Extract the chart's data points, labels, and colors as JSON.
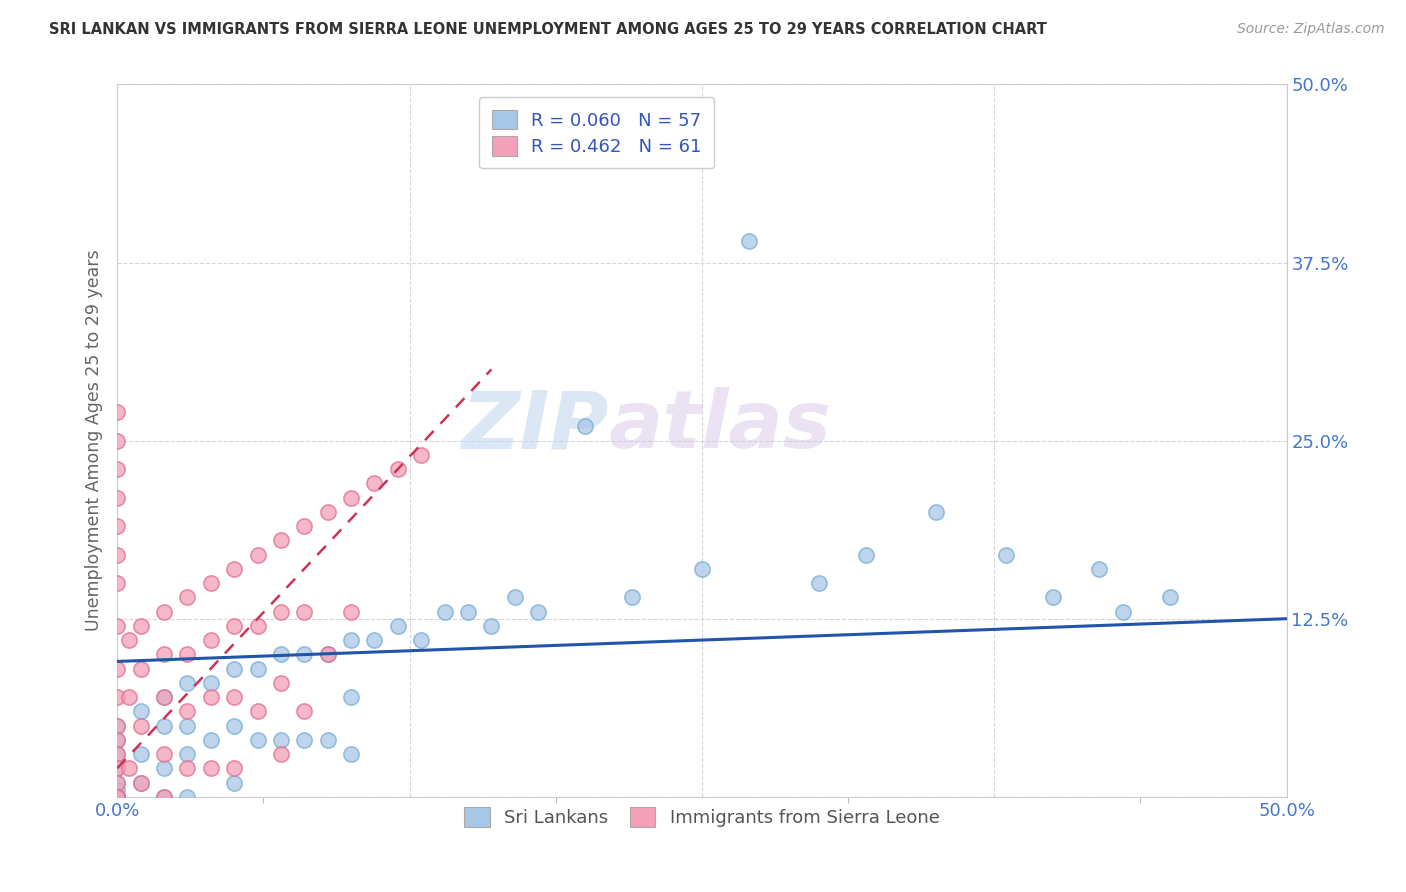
{
  "title": "SRI LANKAN VS IMMIGRANTS FROM SIERRA LEONE UNEMPLOYMENT AMONG AGES 25 TO 29 YEARS CORRELATION CHART",
  "source": "Source: ZipAtlas.com",
  "ylabel": "Unemployment Among Ages 25 to 29 years",
  "xlim": [
    0.0,
    0.5
  ],
  "ylim": [
    0.0,
    0.5
  ],
  "xtick_positions": [
    0.0,
    0.125,
    0.25,
    0.375,
    0.5
  ],
  "xticklabels": [
    "0.0%",
    "",
    "",
    "",
    "50.0%"
  ],
  "ytick_positions": [
    0.0,
    0.125,
    0.25,
    0.375,
    0.5
  ],
  "yticklabels": [
    "",
    "12.5%",
    "25.0%",
    "37.5%",
    "50.0%"
  ],
  "sri_lankan_color": "#a8c8e8",
  "sri_lankan_edge": "#7aafd4",
  "sierra_leone_color": "#f4a0b8",
  "sierra_leone_edge": "#e07090",
  "sri_lankan_R": 0.06,
  "sri_lankan_N": 57,
  "sierra_leone_R": 0.462,
  "sierra_leone_N": 61,
  "sri_lankan_line_color": "#2255aa",
  "sierra_leone_line_color": "#cc3355",
  "watermark_zip": "ZIP",
  "watermark_atlas": "atlas",
  "legend_label_1": "Sri Lankans",
  "legend_label_2": "Immigrants from Sierra Leone",
  "tick_color": "#4477cc",
  "grid_color": "#cccccc",
  "sl_x": [
    0.0,
    0.0,
    0.0,
    0.0,
    0.0,
    0.0,
    0.0,
    0.0,
    0.0,
    0.0,
    0.01,
    0.01,
    0.01,
    0.02,
    0.02,
    0.02,
    0.02,
    0.03,
    0.03,
    0.03,
    0.03,
    0.04,
    0.04,
    0.05,
    0.05,
    0.05,
    0.06,
    0.06,
    0.07,
    0.07,
    0.08,
    0.08,
    0.09,
    0.09,
    0.1,
    0.1,
    0.1,
    0.11,
    0.12,
    0.13,
    0.14,
    0.15,
    0.16,
    0.17,
    0.18,
    0.2,
    0.22,
    0.25,
    0.27,
    0.3,
    0.32,
    0.35,
    0.38,
    0.4,
    0.42,
    0.43,
    0.45
  ],
  "sl_y": [
    0.05,
    0.04,
    0.03,
    0.02,
    0.01,
    0.005,
    0.0,
    0.0,
    0.0,
    0.0,
    0.06,
    0.03,
    0.01,
    0.07,
    0.05,
    0.02,
    0.0,
    0.08,
    0.05,
    0.03,
    0.0,
    0.08,
    0.04,
    0.09,
    0.05,
    0.01,
    0.09,
    0.04,
    0.1,
    0.04,
    0.1,
    0.04,
    0.1,
    0.04,
    0.11,
    0.07,
    0.03,
    0.11,
    0.12,
    0.11,
    0.13,
    0.13,
    0.12,
    0.14,
    0.13,
    0.26,
    0.14,
    0.16,
    0.39,
    0.15,
    0.17,
    0.2,
    0.17,
    0.14,
    0.16,
    0.13,
    0.14
  ],
  "sil_x": [
    0.0,
    0.0,
    0.0,
    0.0,
    0.0,
    0.0,
    0.0,
    0.0,
    0.0,
    0.0,
    0.0,
    0.0,
    0.0,
    0.0,
    0.0,
    0.0,
    0.0,
    0.0,
    0.0,
    0.0,
    0.005,
    0.005,
    0.005,
    0.01,
    0.01,
    0.01,
    0.01,
    0.02,
    0.02,
    0.02,
    0.02,
    0.02,
    0.03,
    0.03,
    0.03,
    0.03,
    0.04,
    0.04,
    0.04,
    0.04,
    0.05,
    0.05,
    0.05,
    0.05,
    0.06,
    0.06,
    0.06,
    0.07,
    0.07,
    0.07,
    0.07,
    0.08,
    0.08,
    0.08,
    0.09,
    0.09,
    0.1,
    0.1,
    0.11,
    0.12,
    0.13
  ],
  "sil_y": [
    0.27,
    0.25,
    0.23,
    0.21,
    0.19,
    0.17,
    0.15,
    0.12,
    0.09,
    0.07,
    0.05,
    0.04,
    0.03,
    0.02,
    0.01,
    0.0,
    0.0,
    0.0,
    0.0,
    0.0,
    0.11,
    0.07,
    0.02,
    0.12,
    0.09,
    0.05,
    0.01,
    0.13,
    0.1,
    0.07,
    0.03,
    0.0,
    0.14,
    0.1,
    0.06,
    0.02,
    0.15,
    0.11,
    0.07,
    0.02,
    0.16,
    0.12,
    0.07,
    0.02,
    0.17,
    0.12,
    0.06,
    0.18,
    0.13,
    0.08,
    0.03,
    0.19,
    0.13,
    0.06,
    0.2,
    0.1,
    0.21,
    0.13,
    0.22,
    0.23,
    0.24
  ],
  "sl_line_x": [
    0.0,
    0.5
  ],
  "sl_line_y": [
    0.095,
    0.125
  ],
  "sil_line_x": [
    0.0,
    0.16
  ],
  "sil_line_y": [
    0.02,
    0.3
  ]
}
